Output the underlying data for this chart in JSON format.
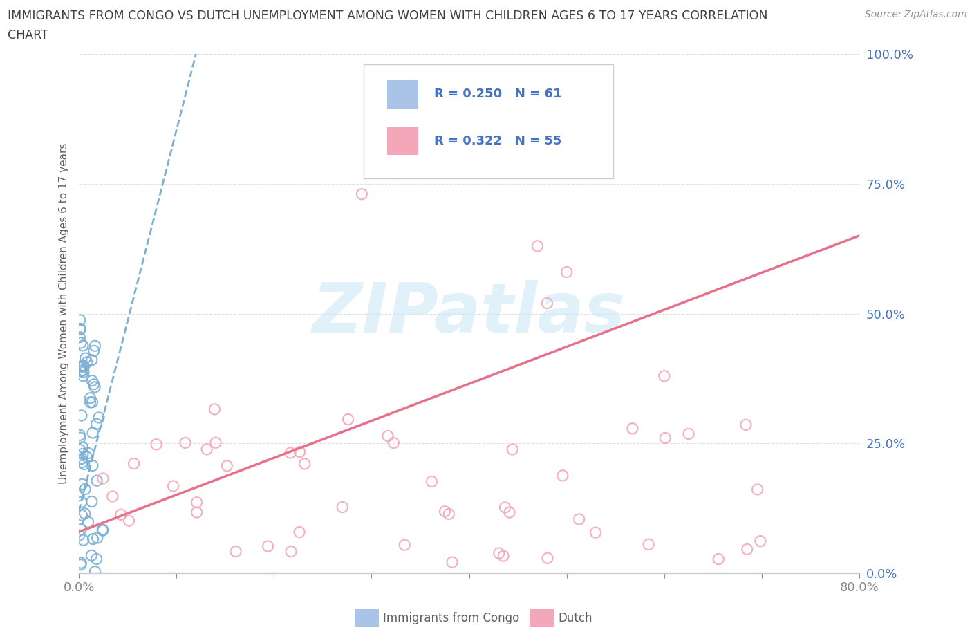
{
  "title_line1": "IMMIGRANTS FROM CONGO VS DUTCH UNEMPLOYMENT AMONG WOMEN WITH CHILDREN AGES 6 TO 17 YEARS CORRELATION",
  "title_line2": "CHART",
  "source": "Source: ZipAtlas.com",
  "ylabel": "Unemployment Among Women with Children Ages 6 to 17 years",
  "xlim": [
    0.0,
    0.8
  ],
  "ylim": [
    0.0,
    1.0
  ],
  "yticks": [
    0.0,
    0.25,
    0.5,
    0.75,
    1.0
  ],
  "yticklabels": [
    "0.0%",
    "25.0%",
    "50.0%",
    "75.0%",
    "100.0%"
  ],
  "congo_R": 0.25,
  "congo_N": 61,
  "dutch_R": 0.322,
  "dutch_N": 55,
  "congo_scatter_color": "#7bafd4",
  "dutch_scatter_color": "#f4a7b9",
  "congo_line_color": "#7bafd4",
  "dutch_line_color": "#e8708a",
  "watermark": "ZIPatlas",
  "watermark_color": "#cde8f5",
  "background_color": "#ffffff",
  "grid_color": "#e0e0e0",
  "legend_box_color_congo": "#aac4e8",
  "legend_box_color_dutch": "#f4a7b9",
  "legend_text_color": "#4472c4",
  "title_color": "#404040",
  "axis_label_color": "#606060",
  "tick_label_color": "#4472c4",
  "bottom_tick_color": "#888888"
}
